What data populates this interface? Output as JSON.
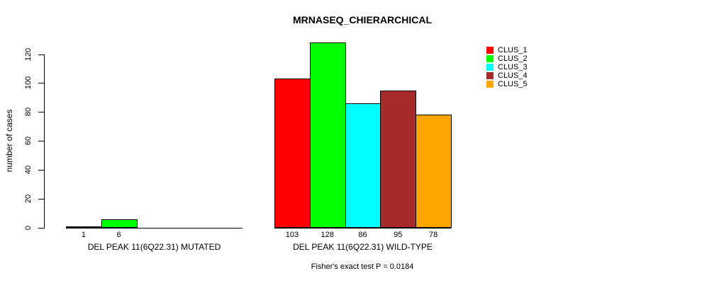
{
  "chart_data": {
    "type": "bar",
    "title": "MRNASEQ_CHIERARCHICAL",
    "xlabel": "",
    "ylabel": "number of cases",
    "ylim": [
      0,
      120
    ],
    "yticks": [
      0,
      20,
      40,
      60,
      80,
      100,
      120
    ],
    "grid": false,
    "legend_position": "top-right",
    "series": [
      "CLUS_1",
      "CLUS_2",
      "CLUS_3",
      "CLUS_4",
      "CLUS_5"
    ],
    "series_colors": [
      "#FF0000",
      "#00FF00",
      "#00FFFF",
      "#A52A2A",
      "#FFA500"
    ],
    "groups": [
      {
        "label": "DEL PEAK 11(6Q22.31) MUTATED",
        "values": [
          1,
          6,
          0,
          0,
          0
        ]
      },
      {
        "label": "DEL PEAK 11(6Q22.31) WILD-TYPE",
        "values": [
          103,
          128,
          86,
          95,
          78
        ]
      }
    ],
    "bar_value_labels": {
      "mutated": [
        1,
        6
      ],
      "wild_type": [
        103,
        128,
        86,
        95,
        78
      ]
    },
    "annotation": "Fisher's exact test P = 0.0184"
  }
}
